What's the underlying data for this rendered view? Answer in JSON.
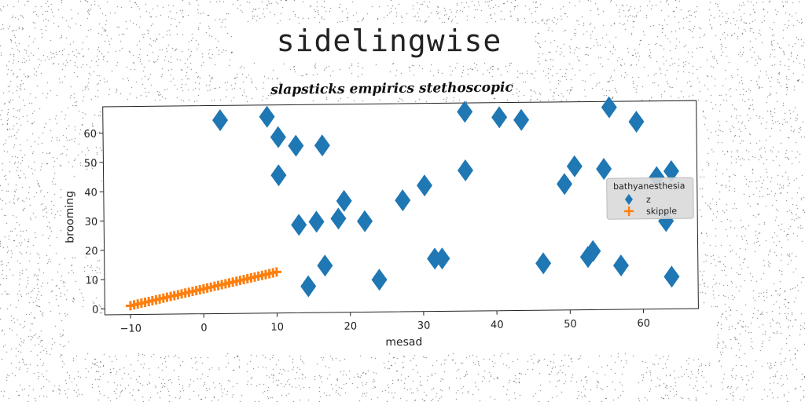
{
  "page": {
    "title": "sidelingwise"
  },
  "chart_data": {
    "type": "scatter",
    "title": "slapsticks empirics stethoscopic",
    "xlabel": "mesad",
    "ylabel": "brooming",
    "xlim": [
      -13.5,
      67.5
    ],
    "ylim": [
      -2,
      69
    ],
    "xticks": [
      -10,
      0,
      10,
      20,
      30,
      40,
      50,
      60
    ],
    "yticks": [
      0,
      10,
      20,
      30,
      40,
      50,
      60
    ],
    "grid": false,
    "legend": {
      "title": "bathyanesthesia",
      "placement": "right"
    },
    "series": [
      {
        "name": "z",
        "marker": "diamond",
        "color": "#1f77b4",
        "x": [
          2.5,
          8.9,
          10.4,
          10.4,
          12.8,
          13.1,
          14.3,
          15.5,
          16.4,
          16.6,
          18.5,
          19.3,
          22.1,
          24,
          27.3,
          30.3,
          31.6,
          32.6,
          35.9,
          35.9,
          40.6,
          43.6,
          46.4,
          49.4,
          50.8,
          52.5,
          53.2,
          54.8,
          55.6,
          57,
          59.3,
          62,
          63.2,
          64,
          63.9
        ],
        "y": [
          64,
          65,
          58,
          45,
          55,
          28,
          7,
          29,
          55,
          14,
          30,
          36,
          29,
          9,
          36,
          41,
          16,
          16,
          46,
          66,
          64,
          63,
          14,
          41,
          47,
          16,
          18,
          46,
          67,
          13,
          62,
          43,
          28,
          45,
          9
        ]
      },
      {
        "name": "skipple",
        "marker": "plus",
        "color": "#ff7f0e",
        "x": [
          -10,
          -9.5,
          -9,
          -8.5,
          -8,
          -7.5,
          -7,
          -6.5,
          -6,
          -5.5,
          -5,
          -4.5,
          -4,
          -3.5,
          -3,
          -2.5,
          -2,
          -1.5,
          -1,
          -0.5,
          0,
          0.5,
          1,
          1.5,
          2,
          2.5,
          3,
          3.5,
          4,
          4.5,
          5,
          5.5,
          6,
          6.5,
          7,
          7.5,
          8,
          8.5,
          9,
          9.5,
          10
        ],
        "y": [
          1,
          1.28,
          1.55,
          1.83,
          2.1,
          2.38,
          2.65,
          2.93,
          3.2,
          3.48,
          3.75,
          4.03,
          4.3,
          4.58,
          4.85,
          5.13,
          5.4,
          5.68,
          5.95,
          6.23,
          6.5,
          6.78,
          7.05,
          7.33,
          7.6,
          7.88,
          8.15,
          8.43,
          8.7,
          8.98,
          9.25,
          9.53,
          9.8,
          10.08,
          10.35,
          10.63,
          10.9,
          11.18,
          11.45,
          11.73,
          12
        ]
      }
    ]
  }
}
